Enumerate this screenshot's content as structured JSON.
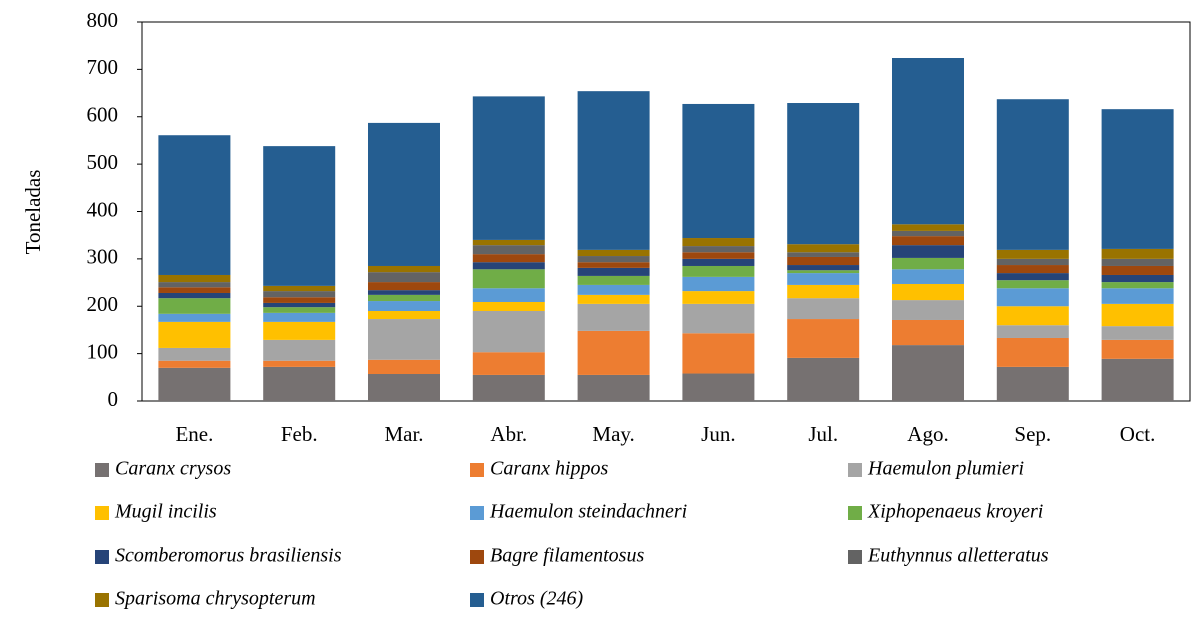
{
  "chart_data": {
    "type": "stacked_bar",
    "y_label": "Toneladas",
    "categories": [
      "Ene.",
      "Feb.",
      "Mar.",
      "Abr.",
      "May.",
      "Jun.",
      "Jul.",
      "Ago.",
      "Sep.",
      "Oct."
    ],
    "ylim": [
      0,
      800
    ],
    "yticks": [
      0,
      100,
      200,
      300,
      400,
      500,
      600,
      700,
      800
    ],
    "grid": false,
    "legend": "bottom",
    "series": [
      {
        "name": "Caranx crysos",
        "color": "#767171",
        "values": [
          70,
          72,
          57,
          55,
          55,
          58,
          91,
          118,
          72,
          89
        ]
      },
      {
        "name": "Caranx hippos",
        "color": "#ed7d31",
        "values": [
          15,
          13,
          30,
          48,
          93,
          85,
          82,
          53,
          61,
          40
        ]
      },
      {
        "name": "Haemulon plumieri",
        "color": "#a5a5a5",
        "values": [
          27,
          44,
          86,
          87,
          57,
          62,
          44,
          42,
          27,
          29
        ]
      },
      {
        "name": "Mugil incilis",
        "color": "#ffc000",
        "values": [
          55,
          38,
          17,
          19,
          19,
          27,
          28,
          34,
          40,
          47
        ]
      },
      {
        "name": "Haemulon steindachneri",
        "color": "#5b9bd5",
        "values": [
          17,
          19,
          21,
          29,
          21,
          30,
          25,
          31,
          38,
          33
        ]
      },
      {
        "name": "Xiphopenaeus kroyeri",
        "color": "#70ad47",
        "values": [
          33,
          12,
          13,
          40,
          19,
          23,
          6,
          24,
          17,
          13
        ]
      },
      {
        "name": "Scomberomorus brasiliensis",
        "color": "#264478",
        "values": [
          11,
          9,
          10,
          15,
          17,
          15,
          11,
          27,
          15,
          15
        ]
      },
      {
        "name": "Bagre filamentosus",
        "color": "#9e480e",
        "values": [
          12,
          12,
          17,
          17,
          12,
          14,
          17,
          19,
          17,
          19
        ]
      },
      {
        "name": "Euthynnus alletteratus",
        "color": "#636363",
        "values": [
          11,
          13,
          21,
          19,
          13,
          13,
          10,
          11,
          13,
          15
        ]
      },
      {
        "name": "Sparisoma chrysopterum",
        "color": "#997300",
        "values": [
          15,
          11,
          13,
          11,
          13,
          17,
          17,
          14,
          19,
          21
        ]
      },
      {
        "name": "Otros (246)",
        "color": "#255e91",
        "values": [
          295,
          295,
          302,
          303,
          335,
          283,
          298,
          351,
          318,
          295
        ]
      }
    ]
  }
}
